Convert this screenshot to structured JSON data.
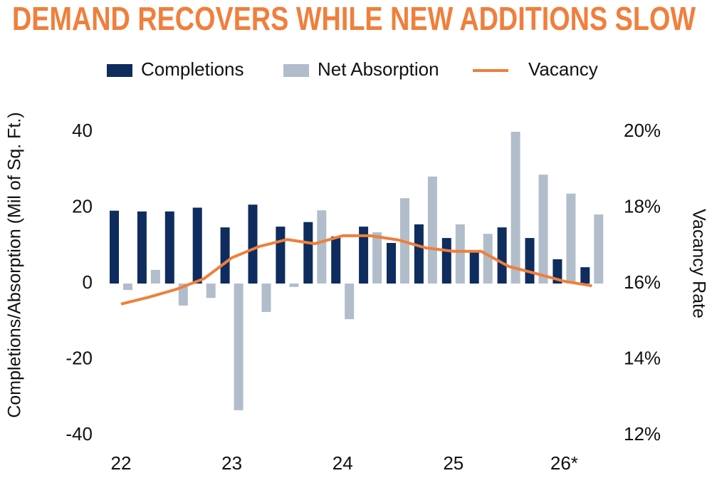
{
  "chart_data": {
    "type": "bar",
    "title": "DEMAND RECOVERS WHILE NEW ADDITIONS SLOW",
    "y_label": "Completions/Absorption (Mil of Sq. Ft.)",
    "y2_label": "Vacancy Rate",
    "categories": [
      "22",
      null,
      null,
      null,
      "23",
      null,
      null,
      null,
      "24",
      null,
      null,
      null,
      "25",
      null,
      null,
      null,
      "26*",
      null
    ],
    "series": [
      {
        "name": "Completions",
        "type": "bar",
        "color": "#0e2c5e",
        "values": [
          19.2,
          19,
          19,
          20,
          14.8,
          20.8,
          15,
          16.2,
          12.4,
          15,
          10.7,
          15.6,
          12,
          8.3,
          14.8,
          12,
          6.4,
          4.3
        ]
      },
      {
        "name": "Net Absorption",
        "type": "bar",
        "color": "#b1bdcb",
        "values": [
          -1.7,
          3.6,
          -5.8,
          -3.8,
          -33.4,
          -7.5,
          -0.9,
          19.3,
          -9.4,
          13.5,
          22.5,
          28.2,
          15.6,
          13.1,
          40,
          28.7,
          23.7,
          18.2
        ]
      },
      {
        "name": "Vacancy",
        "type": "line",
        "axis": "y2",
        "color": "#ef7f3a",
        "values": [
          15.46,
          15.64,
          15.85,
          16.13,
          16.68,
          16.98,
          17.16,
          17.05,
          17.26,
          17.26,
          17.15,
          16.94,
          16.85,
          16.85,
          16.45,
          16.26,
          16.06,
          15.94
        ]
      }
    ],
    "ylim": [
      -40,
      40
    ],
    "yticks": [
      -40,
      -20,
      0,
      20,
      40
    ],
    "y2lim": [
      12,
      20
    ],
    "y2ticks": [
      {
        "value": 12,
        "label": "12%"
      },
      {
        "value": 14,
        "label": "14%"
      },
      {
        "value": 16,
        "label": "16%"
      },
      {
        "value": 18,
        "label": "18%"
      },
      {
        "value": 20,
        "label": "20%"
      }
    ],
    "legend": "top",
    "grid": false
  }
}
